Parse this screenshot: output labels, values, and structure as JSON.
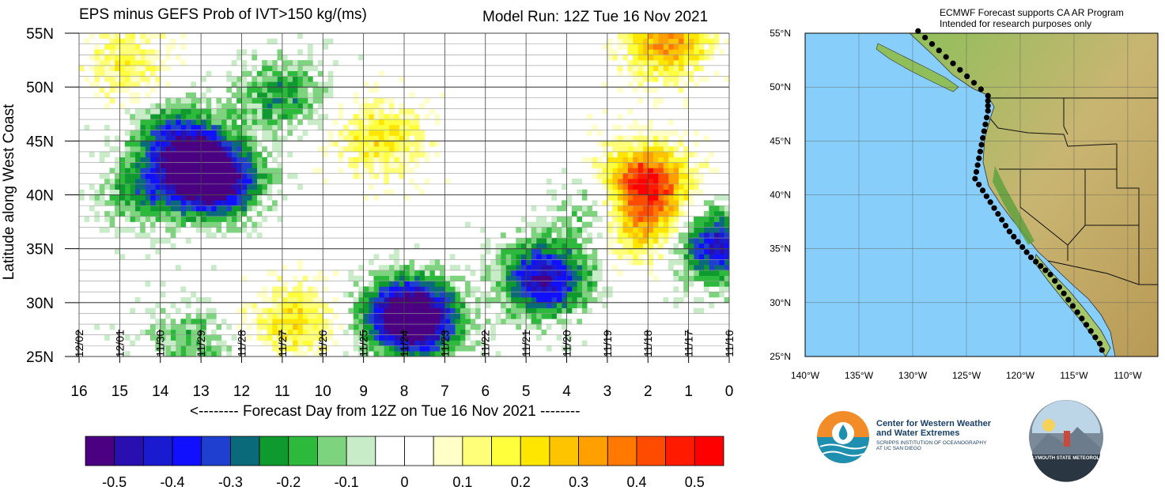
{
  "header": {
    "main_title": "EPS minus GEFS Prob of IVT>150 kg/(ms)",
    "model_run": "Model Run: 12Z Tue 16 Nov 2021"
  },
  "right_panel": {
    "note_line1": "ECMWF Forecast supports CA AR Program",
    "note_line2": "Intended for research purposes only",
    "lat_ticks": [
      "55°N",
      "50°N",
      "45°N",
      "40°N",
      "35°N",
      "30°N",
      "25°N"
    ],
    "lon_ticks": [
      "140°W",
      "135°W",
      "130°W",
      "125°W",
      "120°W",
      "115°W",
      "110°W"
    ]
  },
  "logos": {
    "cw3e_line1": "Center for Western Weather",
    "cw3e_line2": "and Water Extremes",
    "cw3e_sub1": "SCRIPPS INSTITUTION OF OCEANOGRAPHY",
    "cw3e_sub2": "AT UC SAN DIEGO",
    "psu": "PLYMOUTH STATE METEOROLOGY"
  },
  "colorbar": {
    "colors": [
      "#4b0082",
      "#2a0fb0",
      "#1a1ad0",
      "#1010ff",
      "#1f3fd0",
      "#0a6a7a",
      "#0e9a2e",
      "#2dba3c",
      "#7ed47e",
      "#c8ecc8",
      "#ffffff",
      "#ffffff",
      "#ffffc8",
      "#ffff78",
      "#ffff3c",
      "#ffe600",
      "#ffc400",
      "#ffa000",
      "#ff7800",
      "#ff4b00",
      "#ff1a00",
      "#ff0000"
    ],
    "labels": [
      "-0.5",
      "-0.4",
      "-0.3",
      "-0.2",
      "-0.1",
      "0",
      "0.1",
      "0.2",
      "0.3",
      "0.4",
      "0.5"
    ]
  },
  "chart_data": {
    "type": "heatmap",
    "title": "EPS minus GEFS Prob of IVT>150 kg/(ms)",
    "xlabel": "<-------- Forecast Day from 12Z on Tue 16 Nov 2021 --------",
    "ylabel": "Latitude along West Coast",
    "x_ticks": [
      "16",
      "15",
      "14",
      "13",
      "12",
      "11",
      "10",
      "9",
      "8",
      "7",
      "6",
      "5",
      "4",
      "3",
      "2",
      "1",
      "0"
    ],
    "y_ticks": [
      "55N",
      "50N",
      "45N",
      "40N",
      "35N",
      "30N",
      "25N"
    ],
    "date_labels": [
      "12/02",
      "12/01",
      "11/30",
      "11/29",
      "11/28",
      "11/27",
      "11/26",
      "11/25",
      "11/24",
      "11/23",
      "11/22",
      "11/21",
      "11/20",
      "11/19",
      "11/18",
      "11/17",
      "11/16"
    ],
    "xlim": [
      16,
      0
    ],
    "ylim": [
      25,
      55
    ],
    "value_range": [
      -0.5,
      0.5
    ],
    "features": [
      {
        "day": 13.0,
        "lat": 42,
        "value": -0.35
      },
      {
        "day": 12.5,
        "lat": 41,
        "value": -0.4
      },
      {
        "day": 14.3,
        "lat": 40,
        "value": -0.2
      },
      {
        "day": 13.5,
        "lat": 45,
        "value": -0.3
      },
      {
        "day": 11.0,
        "lat": 49,
        "value": -0.2
      },
      {
        "day": 8.5,
        "lat": 45,
        "value": 0.2
      },
      {
        "day": 7.6,
        "lat": 28,
        "value": -0.45
      },
      {
        "day": 8.0,
        "lat": 29,
        "value": -0.3
      },
      {
        "day": 4.5,
        "lat": 32,
        "value": -0.45
      },
      {
        "day": 3.0,
        "lat": 38,
        "value": -0.2
      },
      {
        "day": 2.0,
        "lat": 41,
        "value": 0.45
      },
      {
        "day": 2.2,
        "lat": 37,
        "value": 0.3
      },
      {
        "day": 10.7,
        "lat": 28,
        "value": 0.2
      },
      {
        "day": 14.8,
        "lat": 52,
        "value": 0.15
      },
      {
        "day": 13.2,
        "lat": 26,
        "value": -0.15
      },
      {
        "day": 0.2,
        "lat": 35,
        "value": -0.4
      },
      {
        "day": 1.5,
        "lat": 54,
        "value": 0.3
      }
    ]
  }
}
